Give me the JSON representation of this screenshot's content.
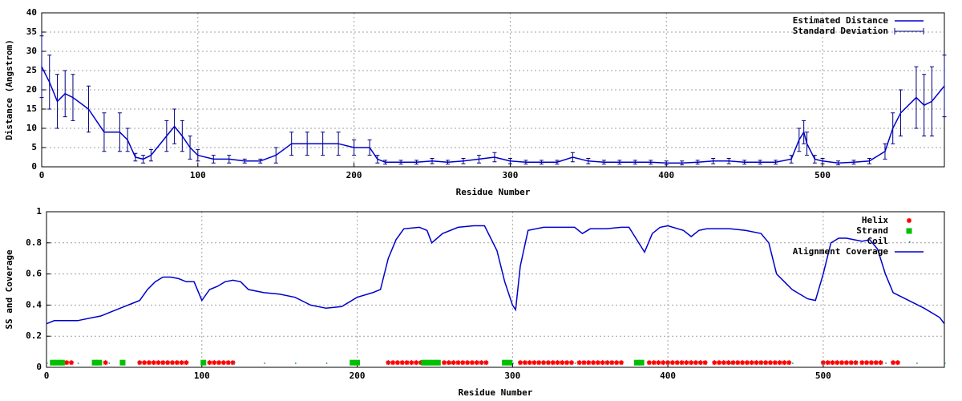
{
  "chart_data": [
    {
      "type": "errorbar",
      "xlabel": "Residue Number",
      "ylabel": "Distance (Angstrom)",
      "xlim": [
        0,
        578
      ],
      "ylim": [
        0,
        40
      ],
      "xticks": [
        0,
        100,
        200,
        300,
        400,
        500
      ],
      "yticks": [
        0,
        5,
        10,
        15,
        20,
        25,
        30,
        35,
        40
      ],
      "grid": true,
      "legend": "top-right",
      "x": [
        0,
        5,
        10,
        15,
        20,
        30,
        40,
        50,
        55,
        60,
        65,
        70,
        80,
        85,
        90,
        95,
        100,
        110,
        120,
        130,
        140,
        150,
        160,
        170,
        180,
        190,
        200,
        210,
        215,
        220,
        230,
        240,
        250,
        260,
        270,
        280,
        290,
        300,
        310,
        320,
        330,
        340,
        350,
        360,
        370,
        380,
        390,
        400,
        410,
        420,
        430,
        440,
        450,
        460,
        470,
        480,
        485,
        488,
        490,
        495,
        500,
        510,
        520,
        530,
        540,
        545,
        550,
        560,
        565,
        570,
        578
      ],
      "series": [
        {
          "name": "Estimated Distance",
          "color": "#0000cc",
          "values": [
            26,
            22,
            17,
            19,
            18,
            15,
            9,
            9,
            7,
            2.5,
            2,
            3,
            8,
            10.5,
            8,
            5,
            3,
            2,
            2,
            1.5,
            1.5,
            3,
            6,
            6,
            6,
            6,
            5,
            5,
            2,
            1.2,
            1.2,
            1.2,
            1.5,
            1.2,
            1.5,
            2,
            2.5,
            1.5,
            1.2,
            1.2,
            1.2,
            2.5,
            1.5,
            1.2,
            1.2,
            1.2,
            1.2,
            1,
            1,
            1.2,
            1.5,
            1.5,
            1.2,
            1.2,
            1.2,
            2,
            7,
            9,
            6,
            2,
            1.5,
            1,
            1.2,
            1.5,
            4,
            10,
            14,
            18,
            16,
            17,
            21
          ]
        },
        {
          "name": "Standard Deviation",
          "color": "#000080",
          "values": [
            8,
            7,
            7,
            6,
            6,
            6,
            5,
            5,
            3,
            1,
            1,
            1.5,
            4,
            4.5,
            4,
            3,
            1.5,
            1,
            1,
            0.5,
            0.5,
            2,
            3,
            3,
            3,
            3,
            2,
            2,
            1,
            0.5,
            0.5,
            0.5,
            0.7,
            0.5,
            0.7,
            1,
            1.2,
            0.7,
            0.5,
            0.5,
            0.5,
            1.2,
            0.7,
            0.5,
            0.5,
            0.5,
            0.5,
            0.5,
            0.5,
            0.5,
            0.7,
            0.7,
            0.5,
            0.5,
            0.5,
            1,
            3,
            3,
            3,
            1,
            0.7,
            0.5,
            0.5,
            0.7,
            2,
            4,
            6,
            8,
            8,
            9,
            8
          ]
        }
      ]
    },
    {
      "type": "line",
      "xlabel": "Residue Number",
      "ylabel": "SS and Coverage",
      "xlim": [
        0,
        578
      ],
      "ylim": [
        0,
        1
      ],
      "xticks": [
        0,
        100,
        200,
        300,
        400,
        500
      ],
      "yticks": [
        0,
        0.2,
        0.4,
        0.6,
        0.8,
        1
      ],
      "grid": true,
      "legend": "top-right",
      "series": [
        {
          "name": "Helix",
          "color": "#ff0000",
          "style": "points",
          "marker": "star",
          "x": [
            10,
            13,
            16,
            38,
            60,
            63,
            66,
            69,
            72,
            75,
            78,
            81,
            84,
            87,
            90,
            105,
            108,
            111,
            114,
            117,
            120,
            220,
            223,
            226,
            229,
            232,
            235,
            238,
            241,
            256,
            259,
            262,
            265,
            268,
            271,
            274,
            277,
            280,
            283,
            305,
            308,
            311,
            314,
            317,
            320,
            323,
            326,
            329,
            332,
            335,
            338,
            343,
            346,
            349,
            352,
            355,
            358,
            361,
            364,
            367,
            370,
            388,
            391,
            394,
            397,
            400,
            403,
            406,
            409,
            412,
            415,
            418,
            421,
            424,
            430,
            433,
            436,
            439,
            442,
            445,
            448,
            451,
            454,
            457,
            460,
            463,
            466,
            469,
            472,
            475,
            478,
            500,
            503,
            506,
            509,
            512,
            515,
            518,
            521,
            525,
            528,
            531,
            534,
            537,
            545,
            548
          ],
          "values": [
            0.03,
            0.03,
            0.03,
            0.03,
            0.03,
            0.03,
            0.03,
            0.03,
            0.03,
            0.03,
            0.03,
            0.03,
            0.03,
            0.03,
            0.03,
            0.03,
            0.03,
            0.03,
            0.03,
            0.03,
            0.03,
            0.03,
            0.03,
            0.03,
            0.03,
            0.03,
            0.03,
            0.03,
            0.03,
            0.03,
            0.03,
            0.03,
            0.03,
            0.03,
            0.03,
            0.03,
            0.03,
            0.03,
            0.03,
            0.03,
            0.03,
            0.03,
            0.03,
            0.03,
            0.03,
            0.03,
            0.03,
            0.03,
            0.03,
            0.03,
            0.03,
            0.03,
            0.03,
            0.03,
            0.03,
            0.03,
            0.03,
            0.03,
            0.03,
            0.03,
            0.03,
            0.03,
            0.03,
            0.03,
            0.03,
            0.03,
            0.03,
            0.03,
            0.03,
            0.03,
            0.03,
            0.03,
            0.03,
            0.03,
            0.03,
            0.03,
            0.03,
            0.03,
            0.03,
            0.03,
            0.03,
            0.03,
            0.03,
            0.03,
            0.03,
            0.03,
            0.03,
            0.03,
            0.03,
            0.03,
            0.03,
            0.03,
            0.03,
            0.03,
            0.03,
            0.03,
            0.03,
            0.03,
            0.03,
            0.03,
            0.03,
            0.03,
            0.03,
            0.03,
            0.03,
            0.03
          ]
        },
        {
          "name": "Strand",
          "color": "#00c000",
          "style": "points",
          "marker": "square",
          "x": [
            4,
            7,
            10,
            31,
            34,
            49,
            101,
            197,
            200,
            243,
            246,
            249,
            252,
            295,
            298,
            380,
            383
          ],
          "values": [
            0.03,
            0.03,
            0.03,
            0.03,
            0.03,
            0.03,
            0.03,
            0.03,
            0.03,
            0.03,
            0.03,
            0.03,
            0.03,
            0.03,
            0.03,
            0.03,
            0.03
          ]
        },
        {
          "name": "Coil",
          "color": "#008080",
          "style": "points",
          "marker": "dot",
          "x": [
            0,
            20,
            40,
            60,
            80,
            100,
            120,
            140,
            160,
            180,
            200,
            220,
            240,
            260,
            280,
            300,
            320,
            340,
            360,
            380,
            400,
            420,
            440,
            460,
            480,
            500,
            520,
            540,
            560,
            578
          ],
          "values": [
            0.03,
            0.03,
            0.03,
            0.03,
            0.03,
            0.03,
            0.03,
            0.03,
            0.03,
            0.03,
            0.03,
            0.03,
            0.03,
            0.03,
            0.03,
            0.03,
            0.03,
            0.03,
            0.03,
            0.03,
            0.03,
            0.03,
            0.03,
            0.03,
            0.03,
            0.03,
            0.03,
            0.03,
            0.03,
            0.03
          ]
        },
        {
          "name": "Alignment Coverage",
          "color": "#0000cc",
          "style": "line",
          "x": [
            0,
            5,
            10,
            20,
            30,
            35,
            40,
            50,
            55,
            60,
            65,
            70,
            75,
            80,
            85,
            90,
            95,
            100,
            105,
            110,
            115,
            120,
            125,
            130,
            140,
            150,
            160,
            170,
            180,
            190,
            200,
            210,
            215,
            220,
            225,
            230,
            240,
            245,
            248,
            255,
            265,
            275,
            282,
            290,
            295,
            300,
            302,
            305,
            310,
            320,
            340,
            345,
            350,
            360,
            370,
            375,
            380,
            385,
            390,
            395,
            400,
            410,
            415,
            420,
            425,
            440,
            450,
            460,
            465,
            470,
            475,
            480,
            490,
            495,
            500,
            505,
            510,
            515,
            525,
            530,
            535,
            540,
            545,
            555,
            565,
            575,
            578
          ],
          "values": [
            0.28,
            0.3,
            0.3,
            0.3,
            0.32,
            0.33,
            0.35,
            0.39,
            0.41,
            0.43,
            0.5,
            0.55,
            0.58,
            0.58,
            0.57,
            0.55,
            0.55,
            0.43,
            0.5,
            0.52,
            0.55,
            0.56,
            0.55,
            0.5,
            0.48,
            0.47,
            0.45,
            0.4,
            0.38,
            0.39,
            0.45,
            0.48,
            0.5,
            0.7,
            0.82,
            0.89,
            0.9,
            0.88,
            0.8,
            0.86,
            0.9,
            0.91,
            0.91,
            0.75,
            0.55,
            0.4,
            0.37,
            0.65,
            0.88,
            0.9,
            0.9,
            0.86,
            0.89,
            0.89,
            0.9,
            0.9,
            0.82,
            0.74,
            0.86,
            0.9,
            0.91,
            0.88,
            0.84,
            0.88,
            0.89,
            0.89,
            0.88,
            0.86,
            0.8,
            0.6,
            0.55,
            0.5,
            0.44,
            0.43,
            0.6,
            0.8,
            0.83,
            0.83,
            0.81,
            0.82,
            0.76,
            0.6,
            0.48,
            0.43,
            0.38,
            0.32,
            0.28
          ]
        }
      ]
    }
  ]
}
